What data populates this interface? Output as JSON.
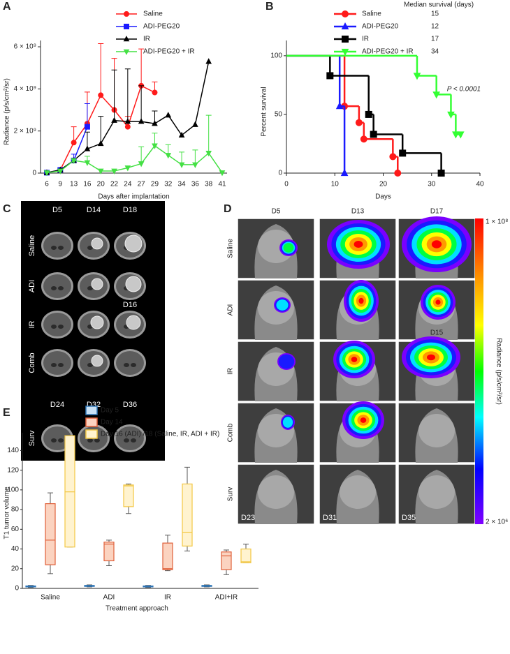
{
  "chart_data": [
    {
      "panel": "A",
      "type": "line",
      "y_label": "Radiance (p/s/cm²/sr)",
      "x_label": "Days after implantation",
      "categories": [
        "6",
        "9",
        "13",
        "16",
        "20",
        "22",
        "24",
        "27",
        "29",
        "32",
        "34",
        "36",
        "38",
        "41"
      ],
      "ylim": [
        0,
        6300000000
      ],
      "yticks": [
        0,
        {
          "value": 2000000000,
          "label": "2 × 10⁹"
        },
        {
          "value": 4000000000,
          "label": "4 × 10⁹"
        },
        {
          "value": 6000000000,
          "label": "6 × 10⁹"
        }
      ],
      "series": [
        {
          "name": "Saline",
          "color": "#ff1a1a",
          "marker": "circle",
          "values": [
            20000000,
            150000000,
            1450000000,
            2350000000,
            3700000000,
            3000000000,
            2200000000,
            4150000000,
            3830000000,
            null,
            null,
            null,
            null,
            null
          ],
          "errors": [
            null,
            null,
            750000000,
            1500000000,
            2450000000,
            2450000000,
            500000000,
            1750000000,
            500000000,
            null,
            null,
            null,
            null,
            null
          ]
        },
        {
          "name": "ADI-PEG20",
          "color": "#1a1aff",
          "marker": "square",
          "values": [
            20000000,
            150000000,
            600000000,
            2200000000,
            null,
            null,
            null,
            null,
            null,
            null,
            null,
            null,
            null,
            null
          ],
          "errors": [
            null,
            null,
            300000000,
            1100000000,
            null,
            null,
            null,
            null,
            null,
            null,
            null,
            null,
            null,
            null
          ]
        },
        {
          "name": "IR",
          "color": "#000000",
          "marker": "triangle",
          "values": [
            20000000,
            150000000,
            600000000,
            1150000000,
            1400000000,
            2500000000,
            2450000000,
            2450000000,
            2350000000,
            2750000000,
            1800000000,
            2300000000,
            5300000000,
            null
          ],
          "errors": [
            null,
            null,
            null,
            800000000,
            1300000000,
            2400000000,
            2500000000,
            1700000000,
            600000000,
            null,
            null,
            null,
            null,
            null
          ]
        },
        {
          "name": "ADI-PEG20 + IR",
          "color": "#44e044",
          "marker": "triangle-down",
          "values": [
            20000000,
            100000000,
            600000000,
            500000000,
            100000000,
            100000000,
            250000000,
            450000000,
            1300000000,
            850000000,
            400000000,
            400000000,
            950000000,
            20000000
          ],
          "errors": [
            null,
            null,
            null,
            300000000,
            null,
            null,
            null,
            800000000,
            600000000,
            500000000,
            600000000,
            700000000,
            1800000000,
            null
          ]
        }
      ]
    },
    {
      "panel": "B",
      "type": "step",
      "y_label": "Percent survival",
      "x_label": "Days",
      "xlim": [
        0,
        40
      ],
      "xticks": [
        0,
        10,
        20,
        30,
        40
      ],
      "ylim": [
        0,
        113
      ],
      "yticks": [
        0,
        50,
        100
      ],
      "legend_title": "Median survival (days)",
      "annotation": "P < 0.0001",
      "series": [
        {
          "name": "Saline",
          "color": "#ff1a1a",
          "marker": "circle",
          "median": 15,
          "x": [
            0,
            12,
            15,
            16,
            22,
            23
          ],
          "values": [
            100,
            57,
            43,
            29,
            14,
            0
          ]
        },
        {
          "name": "ADI-PEG20",
          "color": "#1a1aff",
          "marker": "triangle",
          "median": 12,
          "x": [
            0,
            11,
            12
          ],
          "values": [
            100,
            57,
            0
          ]
        },
        {
          "name": "IR",
          "color": "#000000",
          "marker": "square",
          "median": 17,
          "x": [
            0,
            9,
            17,
            18,
            24,
            32
          ],
          "values": [
            100,
            83,
            50,
            33,
            17,
            0
          ]
        },
        {
          "name": "ADI-PEG20 + IR",
          "color": "#33ff33",
          "marker": "triangle-down",
          "median": 34,
          "x": [
            0,
            27,
            31,
            34,
            35,
            36
          ],
          "values": [
            100,
            83,
            67,
            50,
            33,
            33
          ]
        }
      ]
    },
    {
      "panel": "E",
      "type": "box",
      "y_label": "T1 tumor volume",
      "x_label": "Treatment approach",
      "categories": [
        "Saline",
        "ADI",
        "IR",
        "ADI+IR"
      ],
      "ylim": [
        0,
        158
      ],
      "yticks": [
        0,
        20,
        40,
        60,
        80,
        100,
        120,
        140
      ],
      "series": [
        {
          "name": "Day 5",
          "color": "#2e75b6",
          "fill": "#c9e1f5",
          "boxes": [
            [
              1,
              1.5,
              2,
              2.5,
              3
            ],
            [
              1.5,
              2,
              2.5,
              3,
              3.5
            ],
            [
              1,
              1.5,
              2,
              2.5,
              3
            ],
            [
              1.5,
              2,
              2.5,
              3,
              3.5
            ]
          ]
        },
        {
          "name": "Day 14",
          "color": "#e0603a",
          "fill": "#fbd3c0",
          "boxes": [
            [
              15,
              24,
              49,
              86,
              97
            ],
            [
              23,
              28,
              45,
              47,
              49
            ],
            [
              18,
              19,
              20,
              46,
              54
            ],
            [
              14,
              19,
              33,
              37,
              39
            ]
          ]
        },
        {
          "name": "Day 16 (ADI) /18 (Saline, IR, ADI + IR)",
          "color": "#f2c744",
          "fill": "#fff3cf",
          "boxes": [
            [
              42,
              42,
              98,
              155,
              155
            ],
            [
              76,
              83,
              104,
              105,
              106
            ],
            [
              38,
              43,
              57,
              106,
              123
            ],
            [
              26,
              26,
              27,
              40,
              45
            ]
          ]
        }
      ]
    }
  ],
  "image_panels": [
    {
      "panel": "C",
      "columns": [
        "D5",
        "D14",
        "D18"
      ],
      "rows": [
        "Saline",
        "ADI",
        "IR",
        "Comb"
      ],
      "note": "D16",
      "surv_columns": [
        "D24",
        "D32",
        "D36"
      ],
      "surv_row": "Surv"
    },
    {
      "panel": "D",
      "columns": [
        "D5",
        "D13",
        "D17"
      ],
      "rows": [
        "Saline",
        "ADI",
        "IR",
        "Comb",
        "Surv"
      ],
      "note": "D15",
      "surv_columns": [
        "D23",
        "D31",
        "D35"
      ],
      "colorbar_max": "1 × 10⁸",
      "colorbar_min": "2 × 10⁶",
      "colorbar_label": "Radiance (p/s/cm²/sr)"
    }
  ]
}
